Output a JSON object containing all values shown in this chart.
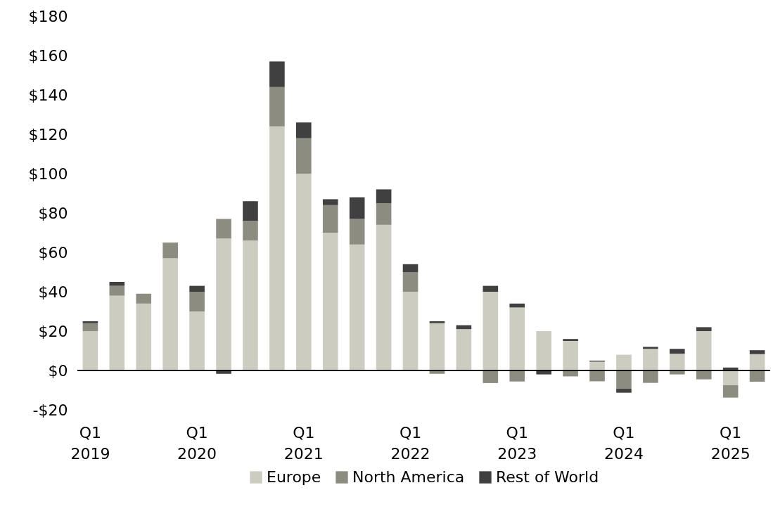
{
  "chart_data": {
    "type": "bar",
    "stacked": true,
    "categories": [
      "Q1 2019",
      null,
      null,
      null,
      "Q1 2020",
      null,
      null,
      null,
      "Q1 2021",
      null,
      null,
      null,
      "Q1 2022",
      null,
      null,
      null,
      "Q1 2023",
      null,
      null,
      null,
      "Q1 2024",
      null,
      null,
      null,
      "Q1 2025",
      null
    ],
    "series": [
      {
        "name": "Europe",
        "color": "#cdccc0",
        "values": [
          20,
          38,
          34,
          57,
          30,
          67,
          66,
          124,
          100,
          70,
          64,
          74,
          40,
          24,
          21,
          40,
          32,
          20,
          15,
          4.5,
          8,
          11,
          8.5,
          20,
          -7.5,
          8.3
        ]
      },
      {
        "name": "North America",
        "color": "#8c8c80",
        "values": [
          4,
          5,
          5,
          8,
          10,
          10,
          10,
          20,
          18,
          14,
          13,
          11,
          10,
          -1.7,
          0,
          -6.4,
          -5.6,
          0,
          -3,
          -5.5,
          -9.3,
          -6.3,
          -2,
          -4.5,
          -6.3,
          -5.7
        ]
      },
      {
        "name": "Rest of World",
        "color": "#404040",
        "values": [
          1,
          2,
          0,
          0,
          3,
          -1.7,
          10,
          13,
          8,
          3,
          11,
          7,
          4,
          1,
          2,
          3,
          2,
          -2,
          1,
          0.5,
          -2,
          1,
          2.5,
          2,
          1.5,
          2
        ]
      }
    ],
    "ylim": [
      -20,
      180
    ],
    "yticks": [
      {
        "value": -20,
        "label": "-$20"
      },
      {
        "value": 0,
        "label": "$0"
      },
      {
        "value": 20,
        "label": "$20"
      },
      {
        "value": 40,
        "label": "$40"
      },
      {
        "value": 60,
        "label": "$60"
      },
      {
        "value": 80,
        "label": "$80"
      },
      {
        "value": 100,
        "label": "$100"
      },
      {
        "value": 120,
        "label": "$120"
      },
      {
        "value": 140,
        "label": "$140"
      },
      {
        "value": 160,
        "label": "$160"
      },
      {
        "value": 180,
        "label": "$180"
      }
    ],
    "ref_lines": [
      {
        "axis": "y",
        "value": 0,
        "color": "#000000"
      }
    ],
    "grid": false,
    "legend": "bottom"
  }
}
